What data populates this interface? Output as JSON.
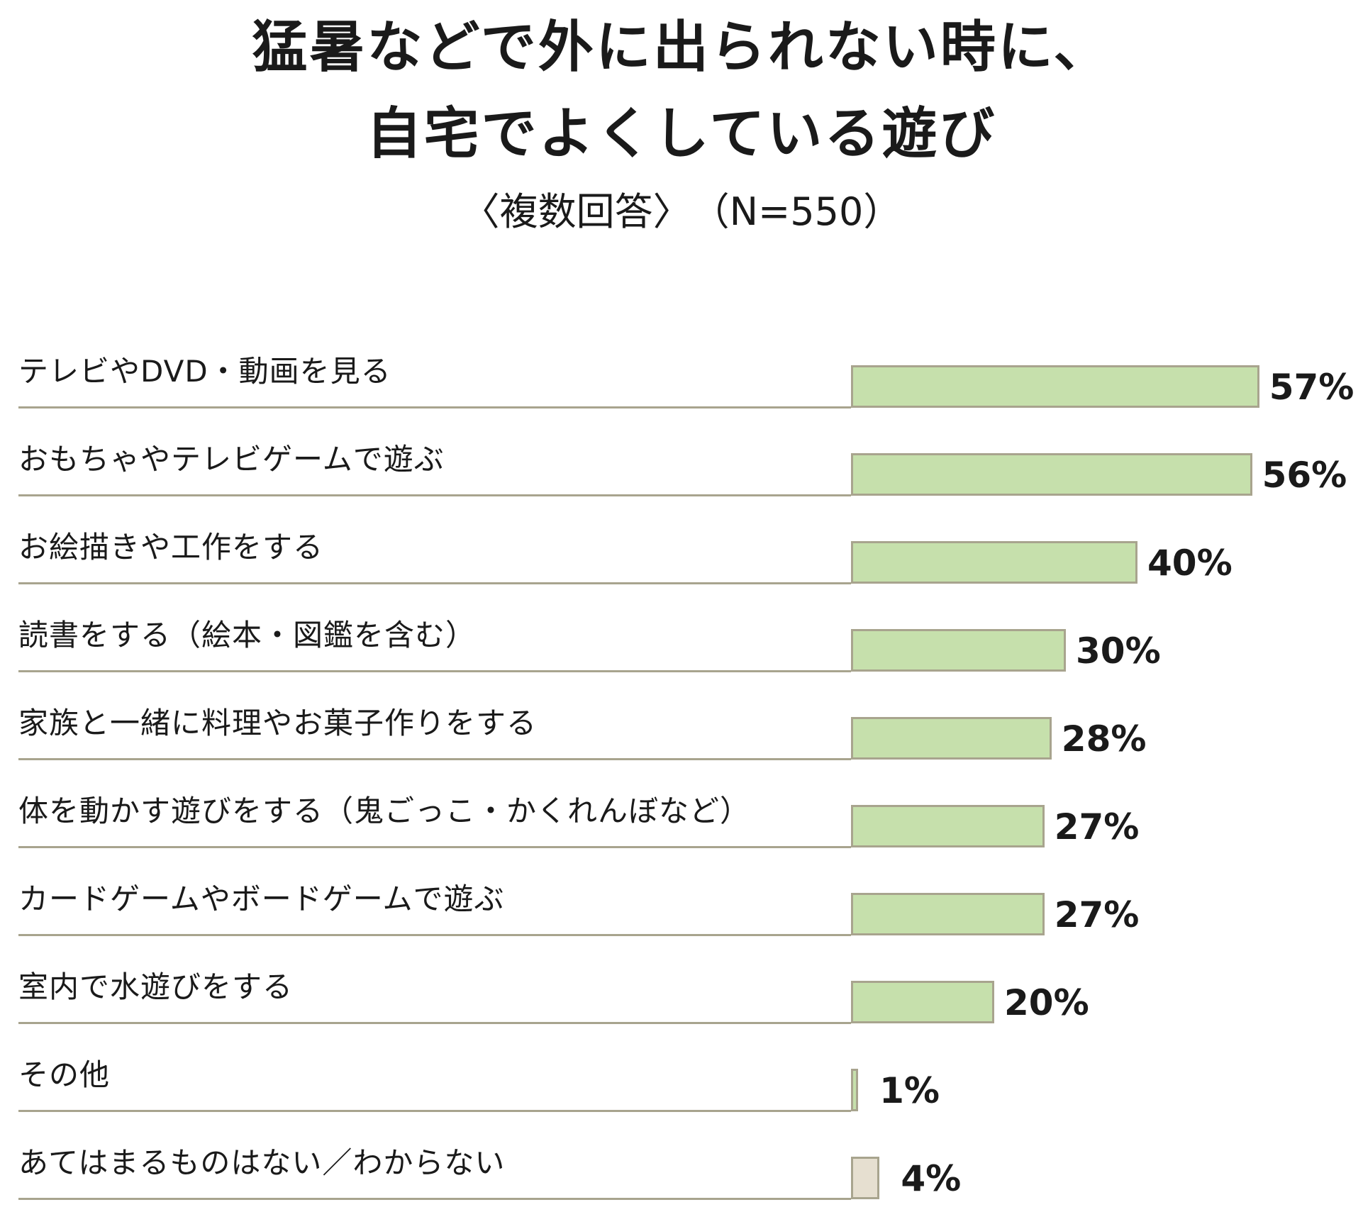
{
  "title": [
    "猛暑などで外に出られない時に、",
    "自宅でよくしている遊び"
  ],
  "subtitle": "〈複数回答〉　（N=550）",
  "colors": {
    "bar": "#c6e0ac",
    "bar_other": "#e6dfd0",
    "line": "#a8a48e"
  },
  "chart_data": {
    "type": "bar",
    "orientation": "horizontal",
    "value_unit": "%",
    "categories": [
      "テレビやDVD・動画を見る",
      "おもちゃやテレビゲームで遊ぶ",
      "お絵描きや工作をする",
      "読書をする（絵本・図鑑を含む）",
      "家族と一緒に料理やお菓子作りをする",
      "体を動かす遊びをする（鬼ごっこ・かくれんぼなど）",
      "カードゲームやボードゲームで遊ぶ",
      "室内で水遊びをする",
      "その他",
      "あてはまるものはない／わからない"
    ],
    "values": [
      57,
      56,
      40,
      30,
      28,
      27,
      27,
      20,
      1,
      4
    ],
    "value_labels": [
      "57%",
      "56%",
      "40%",
      "30%",
      "28%",
      "27%",
      "27%",
      "20%",
      "1%",
      "4%"
    ],
    "bar_color_kind": [
      "main",
      "main",
      "main",
      "main",
      "main",
      "main",
      "main",
      "main",
      "main",
      "other"
    ]
  }
}
